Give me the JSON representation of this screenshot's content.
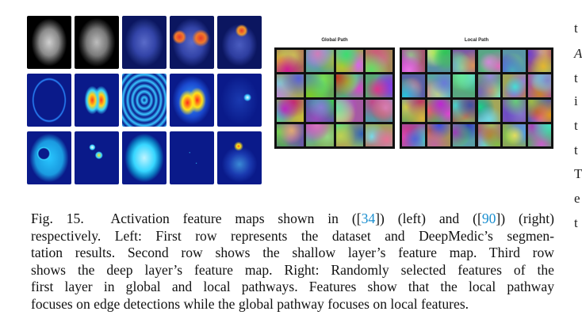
{
  "figure_right": {
    "global_title": "Global Path",
    "local_title": "Local Path"
  },
  "caption": {
    "label": "Fig. 15.",
    "line1_a": "Activation feature maps shown in ([",
    "ref1": "34",
    "line1_b": "]) (left) and ([",
    "ref2": "90",
    "line1_c": "]) (right)",
    "line2": "respectively. Left: First row represents the dataset and DeepMedic’s segmen-",
    "line3": "tation results. Second row shows the shallow layer’s feature map. Third row",
    "line4": "shows the deep layer’s feature map. Right: Randomly selected features of the",
    "line5": "first layer in global and local pathways. Features show that the local pathway",
    "line6": "focuses on edge detections while the global pathway focuses on local features."
  },
  "right_edge_text": [
    "t",
    "A",
    "t",
    "i",
    "t",
    "t",
    "T",
    "e",
    "t"
  ]
}
